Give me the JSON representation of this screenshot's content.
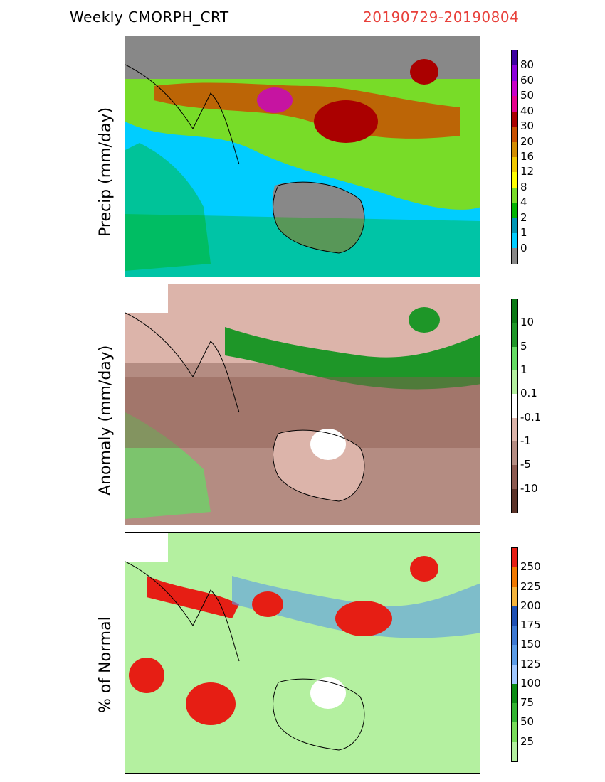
{
  "header": {
    "title": "Weekly CMORPH_CRT",
    "date_range": "20190729-20190804"
  },
  "panels": [
    {
      "id": "precip",
      "ylabel": "Precip (mm/day)",
      "colors": [
        "#888888",
        "#00cdff",
        "#0096b4",
        "#00b400",
        "#78dc28",
        "#ffff00",
        "#f0c800",
        "#d28c00",
        "#c85000",
        "#aa0000",
        "#e6008c",
        "#c800c8",
        "#8c00dc",
        "#3c00a0"
      ],
      "labels": [
        "0",
        "1",
        "2",
        "4",
        "8",
        "12",
        "16",
        "20",
        "30",
        "40",
        "50",
        "60",
        "80"
      ]
    },
    {
      "id": "anomaly",
      "ylabel": "Anomaly (mm/day)",
      "colors": [
        "#5a3228",
        "#8c5a50",
        "#b48c82",
        "#dcb4aa",
        "#ffffff",
        "#b4f0a0",
        "#64dc64",
        "#1e9628",
        "#0a7814"
      ],
      "labels": [
        "-10",
        "-5",
        "-1",
        "-0.1",
        "0.1",
        "1",
        "5",
        "10"
      ]
    },
    {
      "id": "percent",
      "ylabel": "% of Normal",
      "colors": [
        "#b4f0a0",
        "#78dc5a",
        "#32b432",
        "#0a8c14",
        "#a0c8ff",
        "#5a9be6",
        "#3c78d2",
        "#1e50b4",
        "#f5b43c",
        "#f07800",
        "#e61e14"
      ],
      "labels": [
        "25",
        "50",
        "75",
        "100",
        "125",
        "150",
        "175",
        "200",
        "225",
        "250"
      ]
    }
  ]
}
